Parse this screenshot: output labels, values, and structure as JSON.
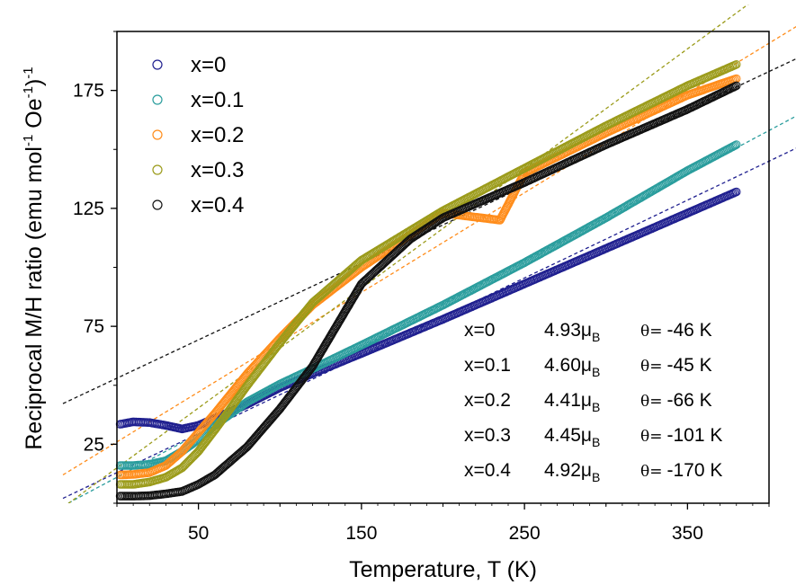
{
  "chart_data": {
    "type": "scatter",
    "xlabel": "Temperature, T (K)",
    "ylabel_main": "Reciprocal M/H ratio  (emu mol",
    "ylabel_mid": " Oe",
    "ylabel_end": ")",
    "ylabel_sup1": "-1",
    "ylabel_sup2": "-1",
    "ylabel_sup3": "-1",
    "xlim": [
      0,
      400
    ],
    "ylim": [
      0,
      200
    ],
    "x_ticks": [
      50,
      150,
      250,
      350
    ],
    "x_tick_labels": [
      "50",
      "150",
      "250",
      "350"
    ],
    "y_ticks": [
      75,
      125,
      175
    ],
    "y_tick_labels": [
      "75",
      "125",
      "175"
    ],
    "extra_y_tick_labels": [
      {
        "value": 25,
        "label": "25"
      }
    ],
    "legend_placement": "top-left",
    "series": [
      {
        "name": "x=0",
        "color": "#1f1f8f",
        "fit_color": "#1f1f8f",
        "points": [
          [
            2,
            33.5
          ],
          [
            10,
            34.5
          ],
          [
            20,
            34.2
          ],
          [
            30,
            33
          ],
          [
            40,
            31.5
          ],
          [
            50,
            33
          ],
          [
            60,
            36
          ],
          [
            80,
            42
          ],
          [
            100,
            49
          ],
          [
            120,
            55
          ],
          [
            150,
            63.5
          ],
          [
            200,
            78
          ],
          [
            250,
            93
          ],
          [
            300,
            108
          ],
          [
            350,
            123
          ],
          [
            380,
            132
          ]
        ],
        "fit": [
          [
            0,
            13
          ],
          [
            400,
            145
          ]
        ]
      },
      {
        "name": "x=0.1",
        "color": "#2a9d9d",
        "fit_color": "#2a9d9d",
        "points": [
          [
            2,
            16
          ],
          [
            10,
            16
          ],
          [
            20,
            16.5
          ],
          [
            30,
            18
          ],
          [
            40,
            22
          ],
          [
            50,
            27
          ],
          [
            60,
            33
          ],
          [
            80,
            43
          ],
          [
            100,
            50.5
          ],
          [
            120,
            57
          ],
          [
            150,
            67
          ],
          [
            200,
            84
          ],
          [
            250,
            102
          ],
          [
            300,
            121
          ],
          [
            350,
            141
          ],
          [
            380,
            152
          ]
        ],
        "fit": [
          [
            0,
            11
          ],
          [
            400,
            158
          ]
        ]
      },
      {
        "name": "x=0.2",
        "color": "#ff8c1a",
        "fit_color": "#ff8c1a",
        "points": [
          [
            2,
            12
          ],
          [
            10,
            12.2
          ],
          [
            20,
            13
          ],
          [
            30,
            16
          ],
          [
            40,
            22
          ],
          [
            50,
            30
          ],
          [
            60,
            38
          ],
          [
            80,
            55
          ],
          [
            100,
            70
          ],
          [
            120,
            84
          ],
          [
            150,
            100
          ],
          [
            200,
            123
          ],
          [
            235,
            120
          ],
          [
            250,
            140
          ],
          [
            300,
            157
          ],
          [
            350,
            173
          ],
          [
            380,
            180
          ]
        ],
        "fit": [
          [
            0,
            26
          ],
          [
            400,
            195
          ]
        ]
      },
      {
        "name": "x=0.3",
        "color": "#9b9b1a",
        "fit_color": "#9b9b1a",
        "points": [
          [
            2,
            8
          ],
          [
            10,
            8
          ],
          [
            20,
            9
          ],
          [
            30,
            11
          ],
          [
            40,
            15
          ],
          [
            50,
            22
          ],
          [
            60,
            31
          ],
          [
            80,
            50
          ],
          [
            100,
            68
          ],
          [
            120,
            85
          ],
          [
            150,
            103
          ],
          [
            200,
            124
          ],
          [
            250,
            142
          ],
          [
            300,
            160
          ],
          [
            350,
            177
          ],
          [
            380,
            186
          ]
        ],
        "fit": [
          [
            0,
            15
          ],
          [
            400,
            218
          ]
        ]
      },
      {
        "name": "x=0.4",
        "color": "#111111",
        "fit_color": "#111111",
        "points": [
          [
            2,
            3
          ],
          [
            10,
            3
          ],
          [
            20,
            3.2
          ],
          [
            30,
            4
          ],
          [
            40,
            5
          ],
          [
            50,
            8
          ],
          [
            60,
            12
          ],
          [
            80,
            24
          ],
          [
            100,
            40
          ],
          [
            120,
            58
          ],
          [
            150,
            93
          ],
          [
            180,
            112
          ],
          [
            200,
            121
          ],
          [
            250,
            136
          ],
          [
            300,
            152
          ],
          [
            350,
            167
          ],
          [
            380,
            177
          ]
        ],
        "fit": [
          [
            0,
            53
          ],
          [
            400,
            183
          ]
        ]
      }
    ],
    "annotations": [
      {
        "xlabel": "x=0",
        "mu": "4.93",
        "theta": "-46 K"
      },
      {
        "xlabel": "x=0.1",
        "mu": "4.60",
        "theta": "-45 K"
      },
      {
        "xlabel": "x=0.2",
        "mu": "4.41",
        "theta": "-66 K"
      },
      {
        "xlabel": "x=0.3",
        "mu": "4.45",
        "theta": "-101 K"
      },
      {
        "xlabel": "x=0.4",
        "mu": "4.92",
        "theta": "-170 K"
      }
    ],
    "mu_symbol": "μ",
    "mu_sub": "B",
    "theta_symbol": "θ="
  }
}
